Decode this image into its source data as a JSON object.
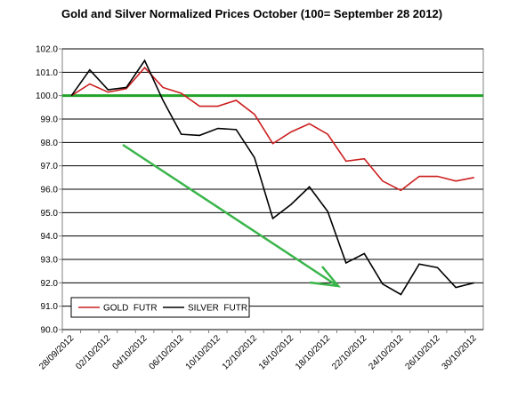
{
  "chart_data": {
    "type": "line",
    "title": "Gold and Silver Normalized Prices October (100= September 28 2012)",
    "categories": [
      "28/09/2012",
      null,
      "02/10/2012",
      null,
      "04/10/2012",
      null,
      "06/10/2012",
      null,
      "10/10/2012",
      null,
      "12/10/2012",
      null,
      "16/10/2012",
      null,
      "18/10/2012",
      null,
      "22/10/2012",
      null,
      "24/10/2012",
      null,
      "26/10/2012",
      null,
      "30/10/2012"
    ],
    "series": [
      {
        "name": "GOLD  FUTR",
        "color": "#cc1f1f",
        "values": [
          100.0,
          100.5,
          100.15,
          100.3,
          101.2,
          100.35,
          100.1,
          99.55,
          99.55,
          99.8,
          99.2,
          97.95,
          98.45,
          98.8,
          98.35,
          97.2,
          97.3,
          96.35,
          95.95,
          96.55,
          96.55,
          96.35,
          96.5
        ]
      },
      {
        "name": "SILVER  FUTR",
        "color": "#000000",
        "values": [
          100.0,
          101.1,
          100.25,
          100.35,
          101.5,
          99.8,
          98.35,
          98.3,
          98.6,
          98.55,
          97.35,
          94.75,
          95.35,
          96.1,
          95.05,
          92.85,
          93.25,
          91.95,
          91.5,
          92.8,
          92.65,
          91.8,
          92.0
        ]
      }
    ],
    "ylim": [
      90,
      102
    ],
    "yticks": [
      {
        "value": 90,
        "label": "90.0"
      },
      {
        "value": 91,
        "label": "91.0"
      },
      {
        "value": 92,
        "label": "92.0"
      },
      {
        "value": 93,
        "label": "93.0"
      },
      {
        "value": 94,
        "label": "94.0"
      },
      {
        "value": 95,
        "label": "95.0"
      },
      {
        "value": 96,
        "label": "96.0"
      },
      {
        "value": 97,
        "label": "97.0"
      },
      {
        "value": 98,
        "label": "98.0"
      },
      {
        "value": 99,
        "label": "99.0"
      },
      {
        "value": 100,
        "label": "100.0"
      },
      {
        "value": 101,
        "label": "101.0"
      },
      {
        "value": 102,
        "label": "102.0"
      }
    ],
    "grid": true,
    "reference_line": {
      "value": 100,
      "color": "#22a32a"
    },
    "legend": "bottom-left"
  }
}
